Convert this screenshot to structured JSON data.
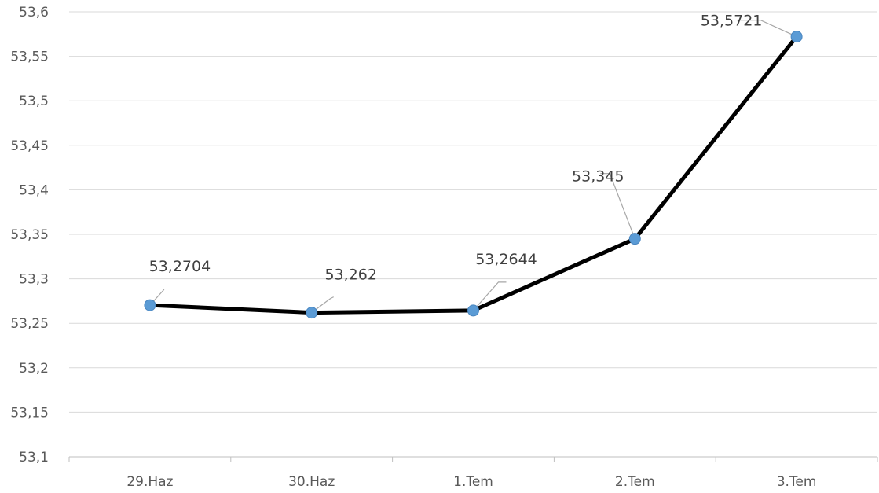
{
  "chart_data": {
    "type": "line",
    "categories": [
      "29.Haz",
      "30.Haz",
      "1.Tem",
      "2.Tem",
      "3.Tem"
    ],
    "values": [
      53.2704,
      53.262,
      53.2644,
      53.345,
      53.5721
    ],
    "data_labels": [
      "53,2704",
      "53,262",
      "53,2644",
      "53,345",
      "53,5721"
    ],
    "y_tick_labels": [
      "53,1",
      "53,15",
      "53,2",
      "53,25",
      "53,3",
      "53,35",
      "53,4",
      "53,45",
      "53,5",
      "53,55",
      "53,6"
    ],
    "ylim": [
      53.1,
      53.6
    ],
    "ystep": 0.05,
    "grid": true,
    "legend": "none",
    "colors": {
      "line": "#000000",
      "marker": "#5b9bd5",
      "grid": "#d9d9d9",
      "leader": "#a6a6a6"
    }
  }
}
